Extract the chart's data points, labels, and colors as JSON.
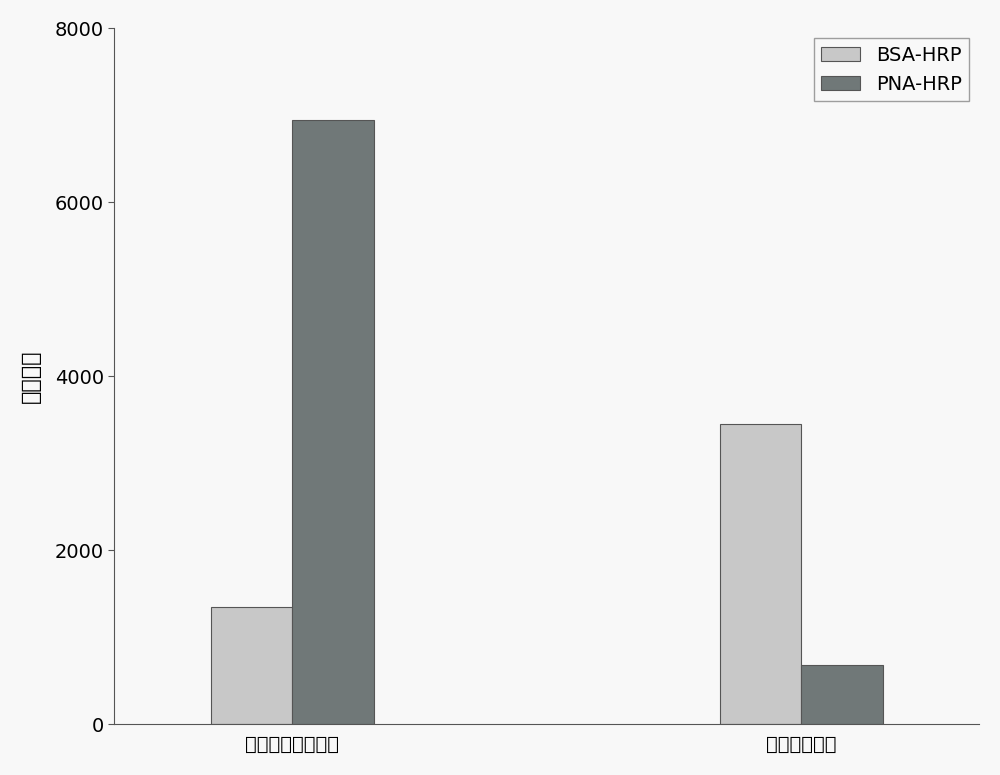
{
  "categories": [
    "乳糖糖基化玻璃片",
    "未处理玻璃片"
  ],
  "bsa_hrp_values": [
    1350,
    3450
  ],
  "pna_hrp_values": [
    6950,
    680
  ],
  "bsa_color": "#c8c8c8",
  "pna_color": "#707878",
  "bsa_label": "BSA-HRP",
  "pna_label": "PNA-HRP",
  "ylabel": "荧光强度",
  "ylim": [
    0,
    8000
  ],
  "yticks": [
    0,
    2000,
    4000,
    6000,
    8000
  ],
  "bar_width": 0.32,
  "group_centers": [
    1.0,
    3.0
  ],
  "background_color": "#f8f8f8",
  "legend_fontsize": 14,
  "tick_fontsize": 14,
  "ylabel_fontsize": 16,
  "edge_color": "#555555",
  "spine_color": "#555555",
  "legend_edge_color": "#888888"
}
